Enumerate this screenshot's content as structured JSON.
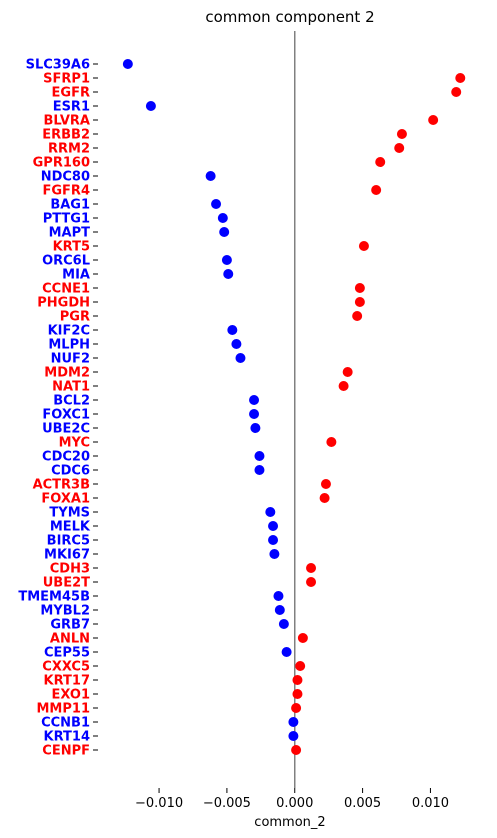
{
  "chart_data": {
    "type": "scatter",
    "title": "common component 2",
    "xlabel": "common_2",
    "ylabel": "",
    "xlim": [
      -0.0145,
      0.0138
    ],
    "xticks": [
      -0.01,
      -0.005,
      0.0,
      0.005,
      0.01
    ],
    "xtick_labels": [
      "−0.010",
      "−0.005",
      "0.000",
      "0.005",
      "0.010"
    ],
    "zero_line": true,
    "grid": false,
    "colors": {
      "positive": "#ff0000",
      "negative": "#0000ff",
      "zero_line": "#808080"
    },
    "points": [
      {
        "gene": "SLC39A6",
        "value": -0.0123
      },
      {
        "gene": "SFRP1",
        "value": 0.0122
      },
      {
        "gene": "EGFR",
        "value": 0.0119
      },
      {
        "gene": "ESR1",
        "value": -0.0106
      },
      {
        "gene": "BLVRA",
        "value": 0.0102
      },
      {
        "gene": "ERBB2",
        "value": 0.0079
      },
      {
        "gene": "RRM2",
        "value": 0.0077
      },
      {
        "gene": "GPR160",
        "value": 0.0063
      },
      {
        "gene": "NDC80",
        "value": -0.0062
      },
      {
        "gene": "FGFR4",
        "value": 0.006
      },
      {
        "gene": "BAG1",
        "value": -0.0058
      },
      {
        "gene": "PTTG1",
        "value": -0.0053
      },
      {
        "gene": "MAPT",
        "value": -0.0052
      },
      {
        "gene": "KRT5",
        "value": 0.0051
      },
      {
        "gene": "ORC6L",
        "value": -0.005
      },
      {
        "gene": "MIA",
        "value": -0.0049
      },
      {
        "gene": "CCNE1",
        "value": 0.0048
      },
      {
        "gene": "PHGDH",
        "value": 0.0048
      },
      {
        "gene": "PGR",
        "value": 0.0046
      },
      {
        "gene": "KIF2C",
        "value": -0.0046
      },
      {
        "gene": "MLPH",
        "value": -0.0043
      },
      {
        "gene": "NUF2",
        "value": -0.004
      },
      {
        "gene": "MDM2",
        "value": 0.0039
      },
      {
        "gene": "NAT1",
        "value": 0.0036
      },
      {
        "gene": "BCL2",
        "value": -0.003
      },
      {
        "gene": "FOXC1",
        "value": -0.003
      },
      {
        "gene": "UBE2C",
        "value": -0.0029
      },
      {
        "gene": "MYC",
        "value": 0.0027
      },
      {
        "gene": "CDC20",
        "value": -0.0026
      },
      {
        "gene": "CDC6",
        "value": -0.0026
      },
      {
        "gene": "ACTR3B",
        "value": 0.0023
      },
      {
        "gene": "FOXA1",
        "value": 0.0022
      },
      {
        "gene": "TYMS",
        "value": -0.0018
      },
      {
        "gene": "MELK",
        "value": -0.0016
      },
      {
        "gene": "BIRC5",
        "value": -0.0016
      },
      {
        "gene": "MKI67",
        "value": -0.0015
      },
      {
        "gene": "CDH3",
        "value": 0.0012
      },
      {
        "gene": "UBE2T",
        "value": 0.0012
      },
      {
        "gene": "TMEM45B",
        "value": -0.0012
      },
      {
        "gene": "MYBL2",
        "value": -0.0011
      },
      {
        "gene": "GRB7",
        "value": -0.0008
      },
      {
        "gene": "ANLN",
        "value": 0.0006
      },
      {
        "gene": "CEP55",
        "value": -0.0006
      },
      {
        "gene": "CXXC5",
        "value": 0.0004
      },
      {
        "gene": "KRT17",
        "value": 0.0002
      },
      {
        "gene": "EXO1",
        "value": 0.0002
      },
      {
        "gene": "MMP11",
        "value": 0.0001
      },
      {
        "gene": "CCNB1",
        "value": -0.0001
      },
      {
        "gene": "KRT14",
        "value": -0.0001
      },
      {
        "gene": "CENPF",
        "value": 0.0001
      }
    ]
  }
}
